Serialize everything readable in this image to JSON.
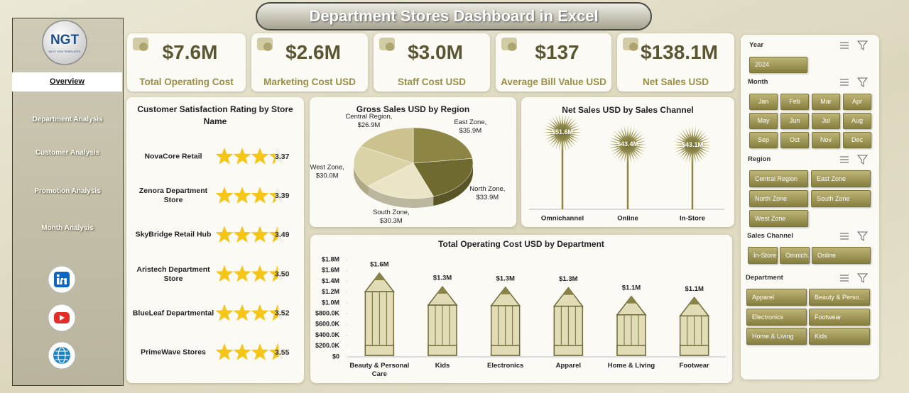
{
  "header": {
    "title": "Department Stores Dashboard in Excel"
  },
  "logo": {
    "text": "NGT",
    "tagline": "NEXT GEN TEMPLATES"
  },
  "nav": [
    "Overview",
    "Department Analysis",
    "Customer Analysis",
    "Promotion Analysis",
    "Month Analysis"
  ],
  "kpis": [
    {
      "value": "$7.6M",
      "label": "Total Operating Cost"
    },
    {
      "value": "$2.6M",
      "label": "Marketing Cost USD"
    },
    {
      "value": "$3.0M",
      "label": "Staff Cost USD"
    },
    {
      "value": "$137",
      "label": "Average Bill Value USD"
    },
    {
      "value": "$138.1M",
      "label": "Net Sales USD"
    }
  ],
  "slicers": [
    {
      "title": "Year",
      "items": [
        "2024"
      ]
    },
    {
      "title": "Month",
      "items": [
        "Jan",
        "Feb",
        "Mar",
        "Apr",
        "May",
        "Jun",
        "Jul",
        "Aug",
        "Sep",
        "Oct",
        "Nov",
        "Dec"
      ]
    },
    {
      "title": "Region",
      "items": [
        "Central Region",
        "East Zone",
        "North Zone",
        "South Zone",
        "West Zone"
      ]
    },
    {
      "title": "Sales Channel",
      "items": [
        "In-Store",
        "Omnich...",
        "Online"
      ]
    },
    {
      "title": "Department",
      "items": [
        "Apparel",
        "Beauty & Perso...",
        "Electronics",
        "Footwear",
        "Home & Living",
        "Kids"
      ]
    }
  ],
  "chart_data": [
    {
      "type": "rating",
      "title": "Customer Satisfaction Rating by Store Name",
      "categories": [
        "NovaCore Retail",
        "Zenora Department Store",
        "SkyBridge Retail Hub",
        "Aristech Department Store",
        "BlueLeaf Departmental",
        "PrimeWave Stores"
      ],
      "values": [
        3.37,
        3.39,
        3.49,
        3.5,
        3.52,
        3.55
      ],
      "value_labels": [
        "3.37",
        "3.39",
        "3.49",
        "3.50",
        "3.52",
        "3.55"
      ],
      "xlim": [
        0,
        4
      ],
      "color": "#f5c518"
    },
    {
      "type": "pie",
      "title": "Gross Sales USD by Region",
      "categories": [
        "East Zone,",
        "North Zone,",
        "South Zone,",
        "West Zone,",
        "Central Region,"
      ],
      "values": [
        35.9,
        33.9,
        30.3,
        30.0,
        26.9
      ],
      "value_labels": [
        "$35.9M",
        "$33.9M",
        "$30.3M",
        "$30.0M",
        "$26.9M"
      ],
      "colors": [
        "#8c8543",
        "#6f6a30",
        "#e9e5c6",
        "#dbd3a8",
        "#cbc28e"
      ]
    },
    {
      "type": "lollipop",
      "title": "Net Sales USD by Sales Channel",
      "categories": [
        "Omnichannel",
        "Online",
        "In-Store"
      ],
      "values": [
        51.6,
        43.4,
        43.1
      ],
      "value_labels": [
        "$51.6M",
        "$43.4M",
        "$43.1M"
      ],
      "ylim": [
        0,
        60
      ],
      "color": "#8c8543"
    },
    {
      "type": "bar",
      "title": "Total Operating Cost USD by Department",
      "categories": [
        "Beauty & Personal Care",
        "Kids",
        "Electronics",
        "Apparel",
        "Home & Living",
        "Footwear"
      ],
      "values": [
        1550000,
        1300000,
        1290000,
        1280000,
        1120000,
        1100000
      ],
      "value_labels": [
        "$1.6M",
        "$1.3M",
        "$1.3M",
        "$1.3M",
        "$1.1M",
        "$1.1M"
      ],
      "ylim": [
        0,
        1800000
      ],
      "yticks": [
        {
          "value": 0,
          "label": "$0"
        },
        {
          "value": 200000,
          "label": "$200.0K"
        },
        {
          "value": 400000,
          "label": "$400.0K"
        },
        {
          "value": 600000,
          "label": "$600.0K"
        },
        {
          "value": 800000,
          "label": "$800.0K"
        },
        {
          "value": 1000000,
          "label": "$1.0M"
        },
        {
          "value": 1200000,
          "label": "$1.2M"
        },
        {
          "value": 1400000,
          "label": "$1.4M"
        },
        {
          "value": 1600000,
          "label": "$1.6M"
        },
        {
          "value": 1800000,
          "label": "$1.8M"
        }
      ],
      "grid": false,
      "color": "#e2dcb6"
    }
  ]
}
